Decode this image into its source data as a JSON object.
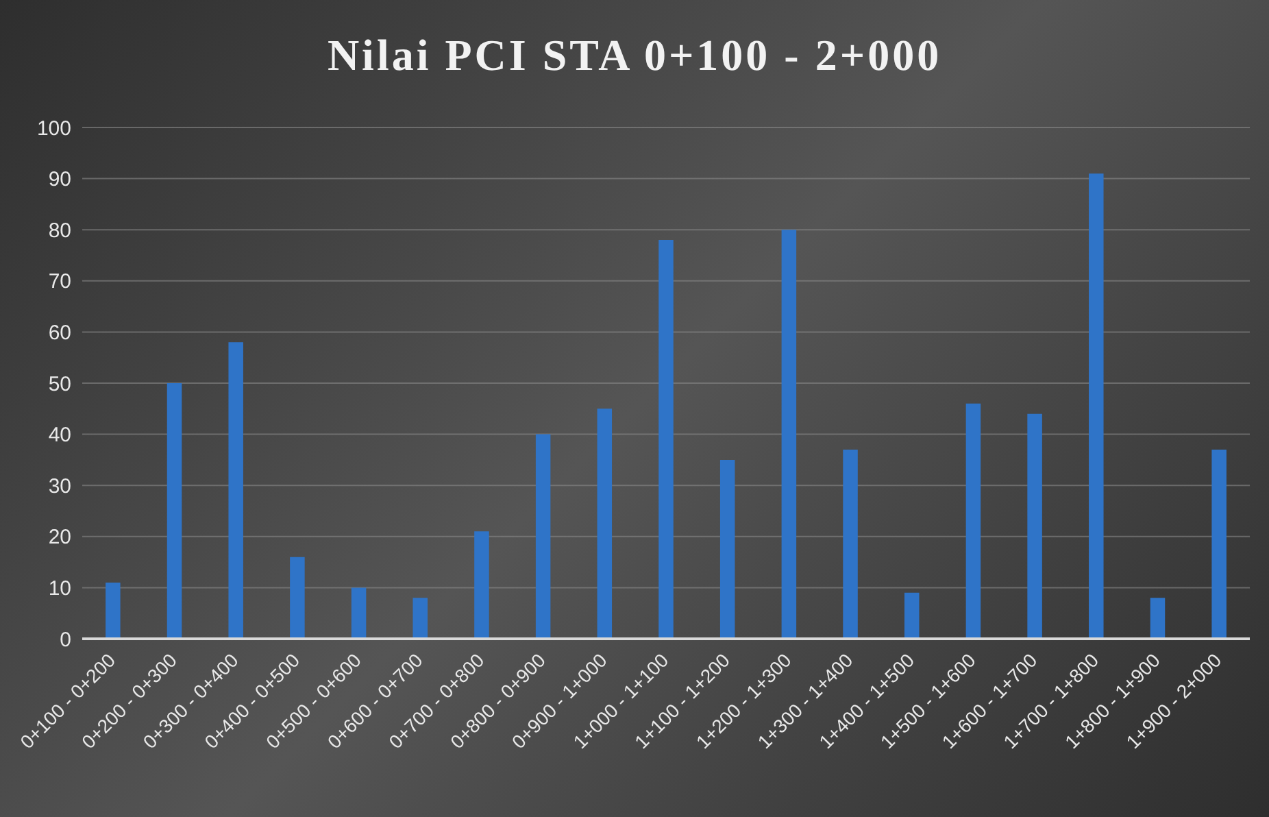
{
  "chart_data": {
    "type": "bar",
    "title": "Nilai PCI STA 0+100 - 2+000",
    "categories": [
      "0+100 - 0+200",
      "0+200 - 0+300",
      "0+300 - 0+400",
      "0+400 - 0+500",
      "0+500 - 0+600",
      "0+600 - 0+700",
      "0+700 - 0+800",
      "0+800 - 0+900",
      "0+900 - 1+000",
      "1+000 - 1+100",
      "1+100 - 1+200",
      "1+200 - 1+300",
      "1+300 - 1+400",
      "1+400 - 1+500",
      "1+500 - 1+600",
      "1+600 - 1+700",
      "1+700 - 1+800",
      "1+800 - 1+900",
      "1+900 - 2+000"
    ],
    "values": [
      11,
      50,
      58,
      16,
      10,
      8,
      21,
      40,
      45,
      78,
      35,
      80,
      37,
      9,
      46,
      44,
      91,
      8,
      37
    ],
    "color": "#2f74c8",
    "ylim": [
      0,
      100
    ],
    "yticks": [
      0,
      10,
      20,
      30,
      40,
      50,
      60,
      70,
      80,
      90,
      100
    ],
    "grid": "y"
  }
}
